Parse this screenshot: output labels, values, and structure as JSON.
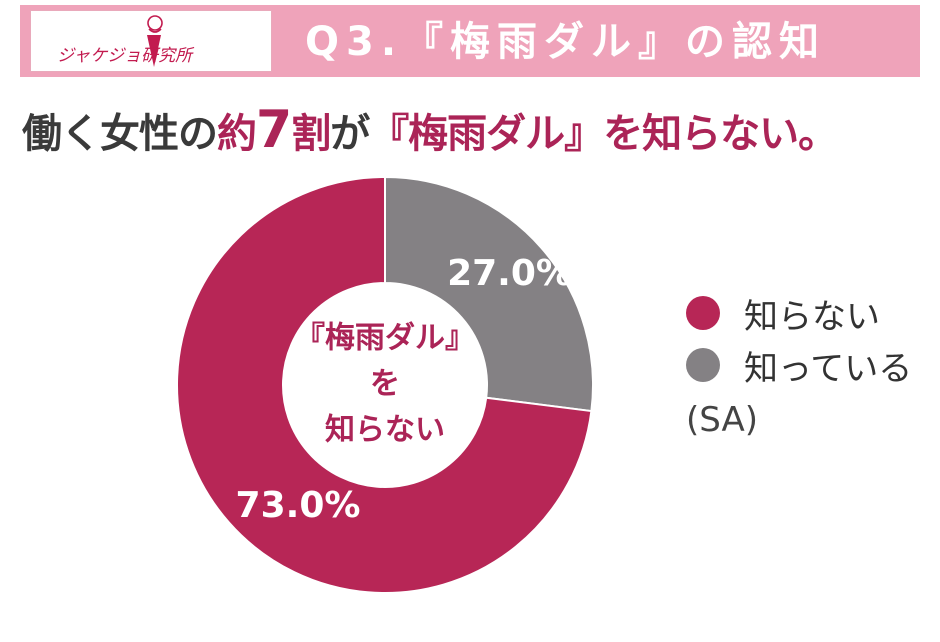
{
  "header": {
    "logo_text": "ジャケジョ研究所",
    "title": "Q3.『梅雨ダル』の認知"
  },
  "headline": {
    "part1": "働く女性の",
    "part2": "約",
    "part3": "7",
    "part4": "割",
    "part5": "が",
    "part6": "『梅雨ダル』",
    "part7": "を知らない。"
  },
  "chart_data": {
    "type": "pie",
    "style": "donut",
    "categories": [
      "知らない",
      "知っている"
    ],
    "values": [
      73.0,
      27.0
    ],
    "labels": [
      "73.0%",
      "27.0%"
    ],
    "colors": [
      "#b72656",
      "#848184"
    ],
    "center_text": [
      "『梅雨ダル』",
      "を",
      "知らない"
    ],
    "legend_position": "right"
  },
  "legend": {
    "items": [
      {
        "label": "知らない",
        "color": "#b72656"
      },
      {
        "label": "知っている",
        "color": "#848184"
      }
    ],
    "note": "(SA)"
  },
  "colors": {
    "accent": "#ab2457",
    "header_band": "#efa3ba",
    "headline_text": "#3a3a3a"
  }
}
